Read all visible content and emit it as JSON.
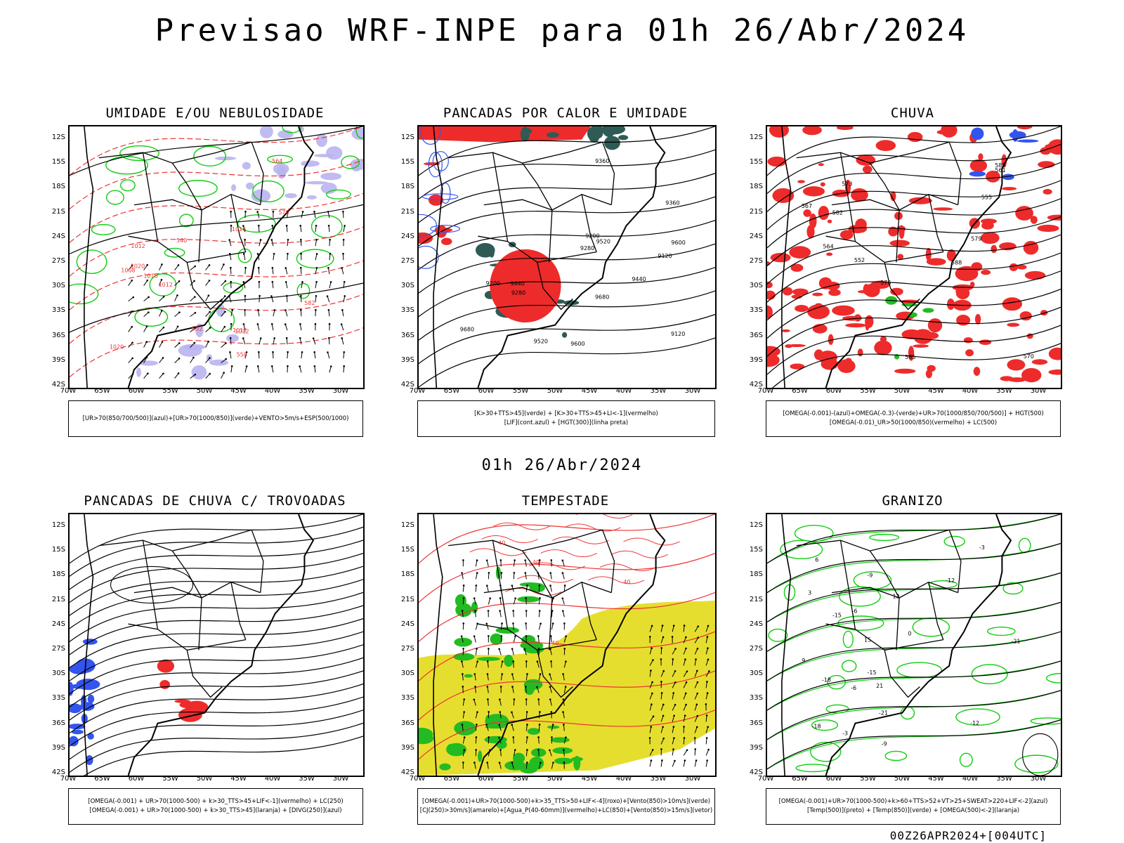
{
  "title": "Previsao WRF-INPE  para 01h 26/Abr/2024",
  "mid_label": "01h 26/Abr/2024",
  "footer": "00Z26APR2024+[004UTC]",
  "lat_ticks": [
    "12S",
    "15S",
    "18S",
    "21S",
    "24S",
    "27S",
    "30S",
    "33S",
    "36S",
    "39S",
    "42S"
  ],
  "lon_ticks": [
    "70W",
    "65W",
    "60W",
    "55W",
    "50W",
    "45W",
    "40W",
    "35W",
    "30W"
  ],
  "panels": [
    {
      "title": "UMIDADE E/OU NEBULOSIDADE",
      "legend": [
        "[UR>70(850/700/500)](azul)+[UR>70(1000/850)](verde)+VENTO>5m/s+ESP(500/1000)"
      ],
      "contour_labels": [
        "1012",
        "1012",
        "1012",
        "1008",
        "1012",
        "1016",
        "1020",
        "1016",
        "1020",
        "576",
        "582",
        "564",
        "558",
        "552",
        "540"
      ]
    },
    {
      "title": "PANCADAS POR CALOR E UMIDADE",
      "legend": [
        "[K>30+TTS>45](verde)  +  [K>30+TTS>45+LI<-1](vermelho)",
        "[LIF](cont.azul)  +  [HGT(300)](linha preta)"
      ],
      "contour_labels": [
        "9680",
        "9680",
        "9600",
        "9520",
        "9600",
        "9440",
        "9360",
        "9280",
        "9200",
        "9120",
        "9520",
        "9440",
        "9360",
        "9280",
        "9200",
        "9120"
      ]
    },
    {
      "title": "CHUVA",
      "legend": [
        "[OMEGA(-0.001)-(azul)+OMEGA(-0.3)-(verde)+UR>70(1000/850/700/500)]  +  HGT(500)",
        "[OMEGA(-0.01)_UR>50(1000/850)(vermelho)  +  LC(500)"
      ],
      "contour_labels": [
        "588",
        "588",
        "585",
        "582",
        "579",
        "576",
        "573",
        "570",
        "567",
        "564",
        "561",
        "555",
        "552"
      ]
    },
    {
      "title": "PANCADAS DE CHUVA C/ TROVOADAS",
      "legend": [
        "[OMEGA(-0.001)  +  UR>70(1000-500)  +  k>30_TTS>45+LIF<-1](vermelho)  +  LC(250)",
        "[OMEGA(-0.001)  +  UR>70(1000-500)  +  k>30_TTS>45](laranja)  +  [DIVG(250)](azul)"
      ],
      "contour_labels": []
    },
    {
      "title": "TEMPESTADE",
      "legend": [
        "[OMEGA(-0.001)+UR>70(1000-500)+k>35_TTS>50+LIF<-4](roxo)+[Vento(850)>10m/s](verde)",
        "[CJ(250)>30m/s](amarelo)+[Agua_P(40-60mm)](vermelho)+LC(850)+[Vento(850)>15m/s](vetor)"
      ],
      "contour_labels": [
        "40",
        "40",
        "40",
        "40"
      ]
    },
    {
      "title": "GRANIZO",
      "legend": [
        "[OMEGA(-0.001)+UR>70(1000-500)+k>60+TTS>52+VT>25+SWEAT>220+LIF<-2](azul)",
        "[Temp(500)](preto)  +  [Temp(850)](verde)  +  [OMEGA(500)<-2](laranja)"
      ],
      "contour_labels": [
        "-3",
        "-6",
        "-9",
        "-12",
        "-15",
        "-18",
        "-21",
        "-18",
        "-21",
        "-12",
        "-15",
        "-9",
        "-6",
        "-3",
        "0",
        "3",
        "6",
        "9",
        "12",
        "15",
        "21"
      ]
    }
  ],
  "colors": {
    "coast": "#000000",
    "red_field": "#ee2b2b",
    "green_field": "#22bb22",
    "green_contour": "#11cc11",
    "blue_field": "#3355ee",
    "lavender_field": "#b9b4ee",
    "yellow_field": "#e6de2e",
    "darkteal_field": "#2f5a55",
    "red_contour": "#ee3333"
  }
}
